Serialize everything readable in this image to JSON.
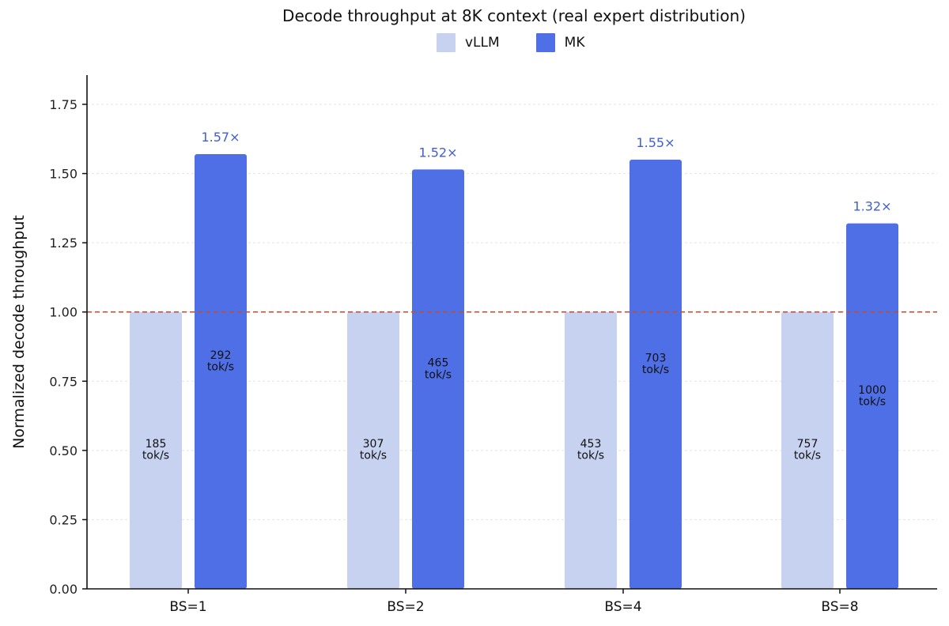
{
  "chart_data": {
    "type": "bar",
    "title": "Decode throughput at 8K context (real expert distribution)",
    "xlabel": "",
    "ylabel": "Normalized decode throughput",
    "categories": [
      "BS=1",
      "BS=2",
      "BS=4",
      "BS=8"
    ],
    "ylim": [
      0,
      1.85
    ],
    "yticks": [
      "0.00",
      "0.25",
      "0.50",
      "0.75",
      "1.00",
      "1.25",
      "1.50",
      "1.75"
    ],
    "series": [
      {
        "name": "vLLM",
        "color": "#c7d2f1",
        "values": [
          1.0,
          1.0,
          1.0,
          1.0
        ],
        "labels": [
          "185\ntok/s",
          "307\ntok/s",
          "453\ntok/s",
          "757\ntok/s"
        ]
      },
      {
        "name": "MK",
        "color": "#4f6fe6",
        "values": [
          1.57,
          1.515,
          1.55,
          1.32
        ],
        "labels": [
          "292\ntok/s",
          "465\ntok/s",
          "703\ntok/s",
          "1000\ntok/s"
        ],
        "speedups": [
          "1.57×",
          "1.52×",
          "1.55×",
          "1.32×"
        ]
      }
    ],
    "reference_line": {
      "y": 1.0,
      "color": "#b5523b",
      "style": "dashed"
    },
    "speedup_color": "#3f5fcf",
    "grid": true,
    "legend_position": "top-center"
  }
}
